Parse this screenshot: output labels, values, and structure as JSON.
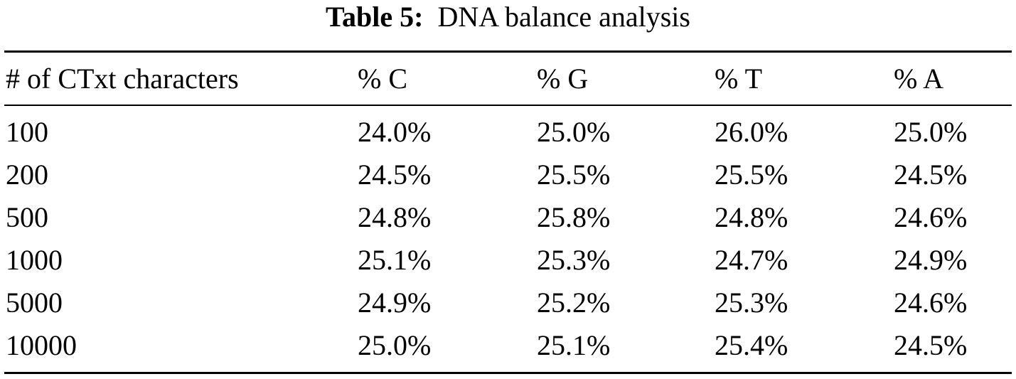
{
  "caption": {
    "label": "Table 5:",
    "text": "DNA balance analysis"
  },
  "table": {
    "headers": [
      "# of CTxt characters",
      "% C",
      "% G",
      "% T",
      "% A"
    ],
    "rows": [
      [
        "100",
        "24.0%",
        "25.0%",
        "26.0%",
        "25.0%"
      ],
      [
        "200",
        "24.5%",
        "25.5%",
        "25.5%",
        "24.5%"
      ],
      [
        "500",
        "24.8%",
        "25.8%",
        "24.8%",
        "24.6%"
      ],
      [
        "1000",
        "25.1%",
        "25.3%",
        "24.7%",
        "24.9%"
      ],
      [
        "5000",
        "24.9%",
        "25.2%",
        "25.3%",
        "24.6%"
      ],
      [
        "10000",
        "25.0%",
        "25.1%",
        "25.4%",
        "24.5%"
      ]
    ]
  }
}
